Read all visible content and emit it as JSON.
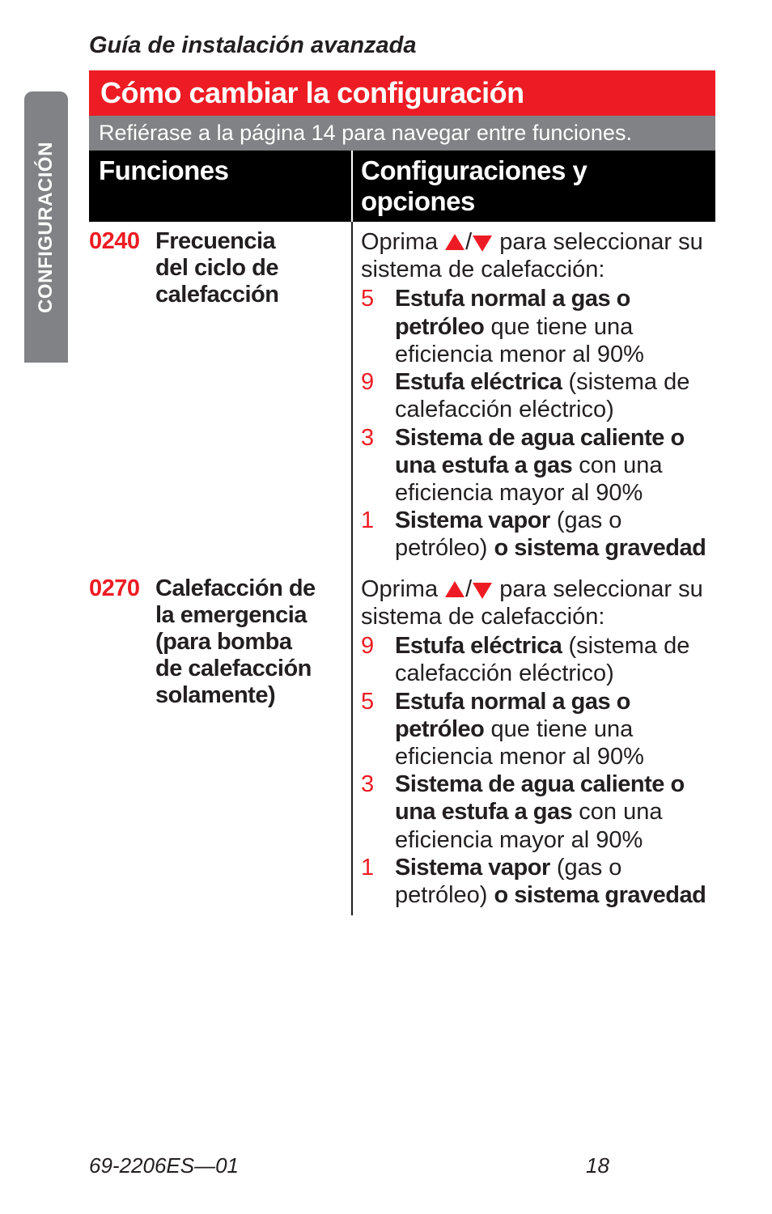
{
  "guide_title": "Guía de instalación avanzada",
  "side_tab": "CONFIGURACIÓN",
  "banner": "Cómo cambiar la configuración",
  "subtitle": "Refiérase a la página 14 para navegar entre funciones.",
  "columns": {
    "left": "Funciones",
    "right": "Configuraciones y opciones"
  },
  "rows": [
    {
      "code": "0240",
      "name_lines": [
        "Frecuencia",
        "del ciclo de",
        "calefacción"
      ],
      "intro_before": "Oprima ",
      "intro_after": " para seleccionar su sistema de calefacción:",
      "options": [
        {
          "num": "5",
          "bold": "Estufa normal a gas o petróleo",
          "rest": " que tiene una eficiencia menor al 90%"
        },
        {
          "num": "9",
          "bold": "Estufa eléctrica",
          "rest": " (sistema de calefacción eléctrico)"
        },
        {
          "num": "3",
          "bold": "Sistema de agua caliente o una estufa a gas",
          "rest": " con una eficiencia mayor al 90%"
        },
        {
          "num": "1",
          "bold": "Sistema vapor",
          "rest_before": " (gas o petróleo) ",
          "bold2": "o sistema gravedad",
          "rest": ""
        }
      ]
    },
    {
      "code": "0270",
      "name_lines": [
        "Calefacción de",
        "la emergencia",
        "(para bomba",
        "de calefacción",
        "solamente)"
      ],
      "intro_before": "Oprima ",
      "intro_after": " para seleccionar su sistema de calefacción:",
      "options": [
        {
          "num": "9",
          "bold": "Estufa eléctrica",
          "rest": " (sistema de calefacción eléctrico)"
        },
        {
          "num": "5",
          "bold": "Estufa normal a gas o petróleo",
          "rest": " que tiene una eficiencia menor al 90%"
        },
        {
          "num": "3",
          "bold": "Sistema de agua caliente o una estufa a gas",
          "rest": " con una eficiencia mayor al 90%"
        },
        {
          "num": "1",
          "bold": "Sistema vapor",
          "rest_before": " (gas o petróleo) ",
          "bold2": "o sistema gravedad",
          "rest": ""
        }
      ]
    }
  ],
  "footer": {
    "doc": "69-2206ES—01",
    "page": "18"
  },
  "colors": {
    "red": "#ed1c24",
    "gray": "#808285",
    "black": "#000000",
    "text": "#231f20",
    "white": "#ffffff"
  }
}
